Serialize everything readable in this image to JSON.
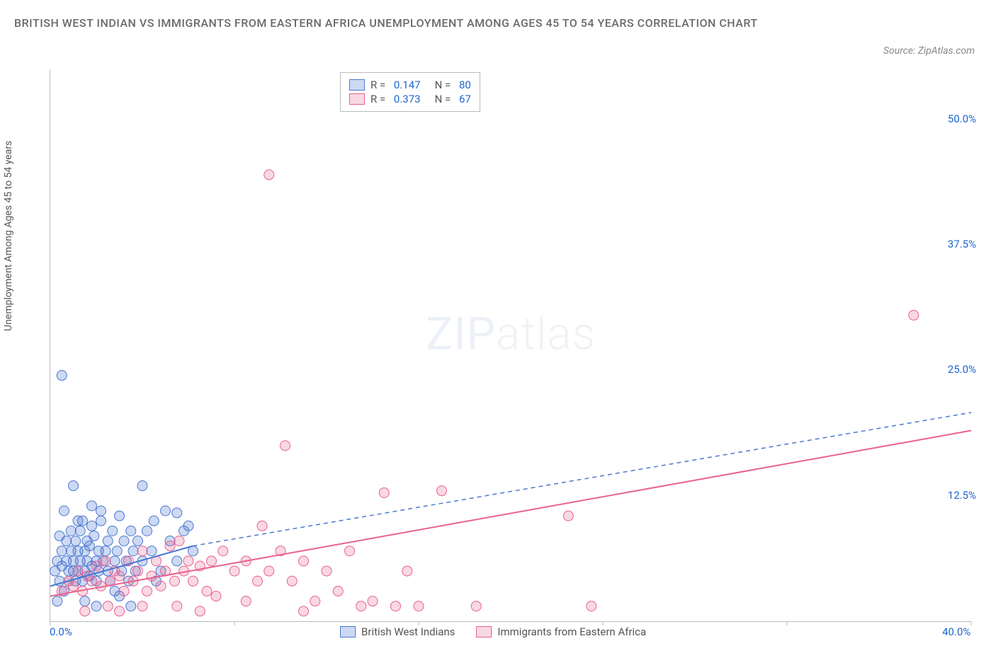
{
  "title": "BRITISH WEST INDIAN VS IMMIGRANTS FROM EASTERN AFRICA UNEMPLOYMENT AMONG AGES 45 TO 54 YEARS CORRELATION CHART",
  "source": "Source: ZipAtlas.com",
  "y_axis_label": "Unemployment Among Ages 45 to 54 years",
  "watermark_bold": "ZIP",
  "watermark_light": "atlas",
  "chart": {
    "type": "scatter",
    "xlim": [
      0,
      40
    ],
    "ylim": [
      0,
      55
    ],
    "x_ticks": [
      0,
      8,
      16,
      24,
      32,
      40
    ],
    "x_tick_labels": [
      "0.0%",
      "",
      "",
      "",
      "",
      "40.0%"
    ],
    "y_ticks": [
      12.5,
      25.0,
      37.5,
      50.0
    ],
    "y_tick_labels": [
      "12.5%",
      "25.0%",
      "37.5%",
      "50.0%"
    ],
    "x_tick_color": "#bbb",
    "background_color": "#ffffff",
    "axis_color": "#bbb",
    "label_color": "#1e66d0",
    "marker_radius": 7,
    "marker_opacity": 0.35,
    "line_width": 2,
    "series": [
      {
        "name": "British West Indians",
        "color_fill": "rgba(74,120,210,0.28)",
        "color_stroke": "#4a78d2",
        "r": "0.147",
        "n": "80",
        "trend": {
          "x1": 0,
          "y1": 3.5,
          "x2": 6.2,
          "y2": 7.5,
          "solid": true
        },
        "trend_ext": {
          "x1": 6.2,
          "y1": 7.5,
          "x2": 40,
          "y2": 20.8,
          "dashed": true
        },
        "points": [
          [
            0.2,
            5
          ],
          [
            0.3,
            6
          ],
          [
            0.4,
            4
          ],
          [
            0.5,
            5.5
          ],
          [
            0.5,
            7
          ],
          [
            0.6,
            3
          ],
          [
            0.7,
            8
          ],
          [
            0.7,
            6
          ],
          [
            0.8,
            5
          ],
          [
            0.8,
            4
          ],
          [
            0.9,
            7
          ],
          [
            0.9,
            9
          ],
          [
            1.0,
            5
          ],
          [
            1.0,
            6
          ],
          [
            1.1,
            8
          ],
          [
            1.1,
            4
          ],
          [
            1.2,
            7
          ],
          [
            1.2,
            5
          ],
          [
            1.3,
            6
          ],
          [
            1.3,
            9
          ],
          [
            1.4,
            4
          ],
          [
            1.4,
            10
          ],
          [
            1.5,
            7
          ],
          [
            1.5,
            5
          ],
          [
            1.6,
            6
          ],
          [
            1.6,
            8
          ],
          [
            1.7,
            4.5
          ],
          [
            1.7,
            7.5
          ],
          [
            1.8,
            5.5
          ],
          [
            1.8,
            9.5
          ],
          [
            1.9,
            8.5
          ],
          [
            2.0,
            6
          ],
          [
            2.0,
            4
          ],
          [
            2.1,
            7
          ],
          [
            2.1,
            5
          ],
          [
            2.2,
            10
          ],
          [
            2.2,
            11
          ],
          [
            2.3,
            6
          ],
          [
            2.4,
            7
          ],
          [
            2.5,
            5
          ],
          [
            2.5,
            8
          ],
          [
            2.6,
            4
          ],
          [
            2.7,
            9
          ],
          [
            2.8,
            6
          ],
          [
            2.9,
            7
          ],
          [
            3.0,
            10.5
          ],
          [
            3.1,
            5
          ],
          [
            3.2,
            8
          ],
          [
            3.3,
            6
          ],
          [
            3.4,
            4
          ],
          [
            3.5,
            9
          ],
          [
            3.6,
            7
          ],
          [
            3.7,
            5
          ],
          [
            3.8,
            8
          ],
          [
            4.0,
            6
          ],
          [
            4.2,
            9
          ],
          [
            4.4,
            7
          ],
          [
            4.5,
            10
          ],
          [
            4.8,
            5
          ],
          [
            5.0,
            11
          ],
          [
            5.2,
            8
          ],
          [
            5.5,
            6
          ],
          [
            5.8,
            9
          ],
          [
            6.2,
            7
          ],
          [
            0.5,
            24.5
          ],
          [
            1.0,
            13.5
          ],
          [
            4.0,
            13.5
          ],
          [
            2.0,
            1.5
          ],
          [
            1.5,
            2
          ],
          [
            3.0,
            2.5
          ],
          [
            3.5,
            1.5
          ],
          [
            0.3,
            2
          ],
          [
            0.6,
            11
          ],
          [
            1.8,
            11.5
          ],
          [
            5.5,
            10.8
          ],
          [
            0.4,
            8.5
          ],
          [
            1.2,
            10
          ],
          [
            2.8,
            3
          ],
          [
            4.6,
            4
          ],
          [
            6.0,
            9.5
          ]
        ]
      },
      {
        "name": "Immigrants from Eastern Africa",
        "color_fill": "rgba(232,98,144,0.25)",
        "color_stroke": "#e86290",
        "r": "0.373",
        "n": "67",
        "trend": {
          "x1": 0,
          "y1": 2.5,
          "x2": 40,
          "y2": 19.0,
          "solid": true
        },
        "points": [
          [
            0.5,
            3
          ],
          [
            0.8,
            4
          ],
          [
            1.0,
            3.5
          ],
          [
            1.2,
            5
          ],
          [
            1.4,
            3
          ],
          [
            1.6,
            4.5
          ],
          [
            1.8,
            4
          ],
          [
            2.0,
            5.5
          ],
          [
            2.2,
            3.5
          ],
          [
            2.4,
            6
          ],
          [
            2.6,
            4
          ],
          [
            2.8,
            5
          ],
          [
            3.0,
            4.5
          ],
          [
            3.2,
            3
          ],
          [
            3.4,
            6
          ],
          [
            3.6,
            4
          ],
          [
            3.8,
            5
          ],
          [
            4.0,
            7
          ],
          [
            4.2,
            3
          ],
          [
            4.4,
            4.5
          ],
          [
            4.6,
            6
          ],
          [
            4.8,
            3.5
          ],
          [
            5.0,
            5
          ],
          [
            5.2,
            7.5
          ],
          [
            5.4,
            4
          ],
          [
            5.6,
            8
          ],
          [
            5.8,
            5
          ],
          [
            6.0,
            6
          ],
          [
            6.2,
            4
          ],
          [
            6.5,
            5.5
          ],
          [
            6.8,
            3
          ],
          [
            7.0,
            6
          ],
          [
            7.5,
            7
          ],
          [
            8.0,
            5
          ],
          [
            8.5,
            6
          ],
          [
            9.0,
            4
          ],
          [
            9.2,
            9.5
          ],
          [
            9.5,
            5
          ],
          [
            10.0,
            7
          ],
          [
            10.5,
            4
          ],
          [
            11.0,
            6
          ],
          [
            11.5,
            2
          ],
          [
            12.0,
            5
          ],
          [
            12.5,
            3
          ],
          [
            13.0,
            7
          ],
          [
            13.5,
            1.5
          ],
          [
            14.0,
            2
          ],
          [
            14.5,
            12.8
          ],
          [
            15.0,
            1.5
          ],
          [
            15.5,
            5
          ],
          [
            16.0,
            1.5
          ],
          [
            10.2,
            17.5
          ],
          [
            9.5,
            44.5
          ],
          [
            1.5,
            1
          ],
          [
            4.0,
            1.5
          ],
          [
            6.5,
            1
          ],
          [
            8.5,
            2
          ],
          [
            5.5,
            1.5
          ],
          [
            7.2,
            2.5
          ],
          [
            2.5,
            1.5
          ],
          [
            22.5,
            10.5
          ],
          [
            18.5,
            1.5
          ],
          [
            23.5,
            1.5
          ],
          [
            37.5,
            30.5
          ],
          [
            17.0,
            13.0
          ],
          [
            3.0,
            1
          ],
          [
            11.0,
            1
          ]
        ]
      }
    ]
  },
  "bottom_legend": [
    {
      "label": "British West Indians",
      "fill": "rgba(74,120,210,0.28)",
      "stroke": "#4a78d2"
    },
    {
      "label": "Immigrants from Eastern Africa",
      "fill": "rgba(232,98,144,0.25)",
      "stroke": "#e86290"
    }
  ]
}
